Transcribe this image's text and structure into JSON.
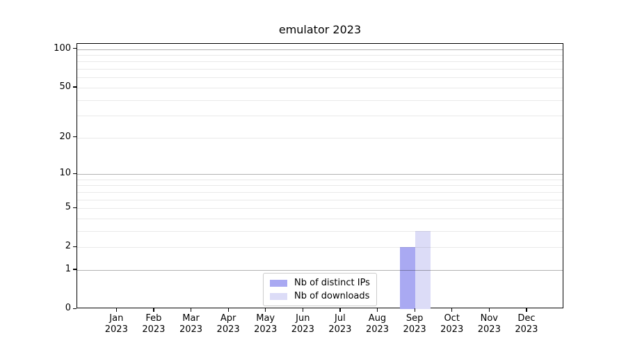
{
  "chart_data": {
    "type": "bar",
    "title": "emulator 2023",
    "categories": [
      "Jan 2023",
      "Feb 2023",
      "Mar 2023",
      "Apr 2023",
      "May 2023",
      "Jun 2023",
      "Jul 2023",
      "Aug 2023",
      "Sep 2023",
      "Oct 2023",
      "Nov 2023",
      "Dec 2023"
    ],
    "series": [
      {
        "name": "Nb of distinct IPs",
        "color": "#a9a9f2",
        "values": [
          0,
          0,
          0,
          0,
          0,
          0,
          0,
          0,
          2,
          0,
          0,
          0
        ]
      },
      {
        "name": "Nb of downloads",
        "color": "#dcdcf7",
        "values": [
          0,
          0,
          0,
          0,
          0,
          0,
          0,
          0,
          3,
          0,
          0,
          0
        ]
      }
    ],
    "x_axis": {
      "tick_labels_line2": "2023"
    },
    "y_axis": {
      "scale": "log1p",
      "ticks": [
        0,
        1,
        2,
        5,
        10,
        20,
        50,
        100
      ],
      "limit": [
        0,
        110
      ],
      "major_gridlines": [
        1,
        10,
        100
      ],
      "minor_gridlines": [
        2,
        3,
        4,
        5,
        6,
        7,
        8,
        9,
        20,
        30,
        40,
        50,
        60,
        70,
        80,
        90
      ]
    },
    "legend": {
      "position": "lower center"
    },
    "grid": true
  }
}
